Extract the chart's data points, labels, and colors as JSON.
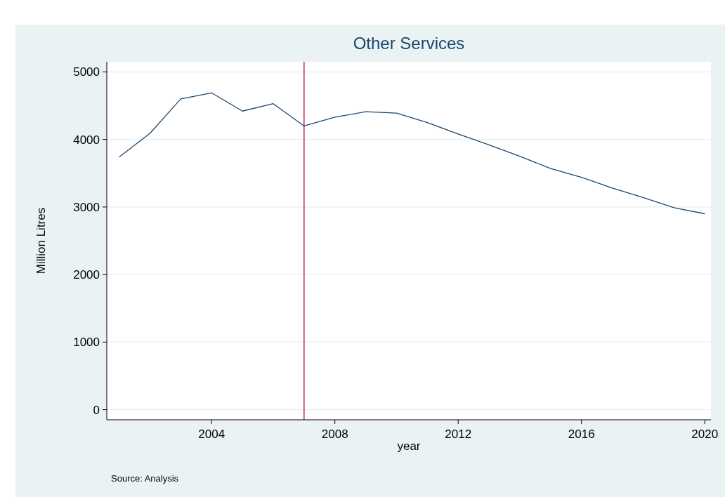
{
  "chart_data": {
    "type": "line",
    "title": "Other Services",
    "xlabel": "year",
    "ylabel": "Million Litres",
    "x": [
      2001,
      2002,
      2003,
      2004,
      2005,
      2006,
      2007,
      2008,
      2009,
      2010,
      2011,
      2012,
      2013,
      2014,
      2015,
      2016,
      2017,
      2018,
      2019,
      2020
    ],
    "series": [
      {
        "color": "#1a476f",
        "values": [
          3740,
          4090,
          4600,
          4690,
          4420,
          4530,
          4200,
          4330,
          4410,
          4390,
          4250,
          4080,
          3920,
          3750,
          3570,
          3440,
          3280,
          3140,
          2990,
          2900
        ]
      }
    ],
    "xlim": [
      2000.6,
      2020.2
    ],
    "xticks": [
      2004,
      2008,
      2012,
      2016,
      2020
    ],
    "ylim": [
      -150,
      5150
    ],
    "yticks": [
      0,
      1000,
      2000,
      3000,
      4000,
      5000
    ],
    "grid": "y",
    "marker": "none",
    "line_style": "solid",
    "ref_lines": [
      {
        "axis": "x",
        "value": 2007,
        "color": "#c8234a"
      }
    ],
    "annotations": [
      "Source: Analysis"
    ]
  }
}
